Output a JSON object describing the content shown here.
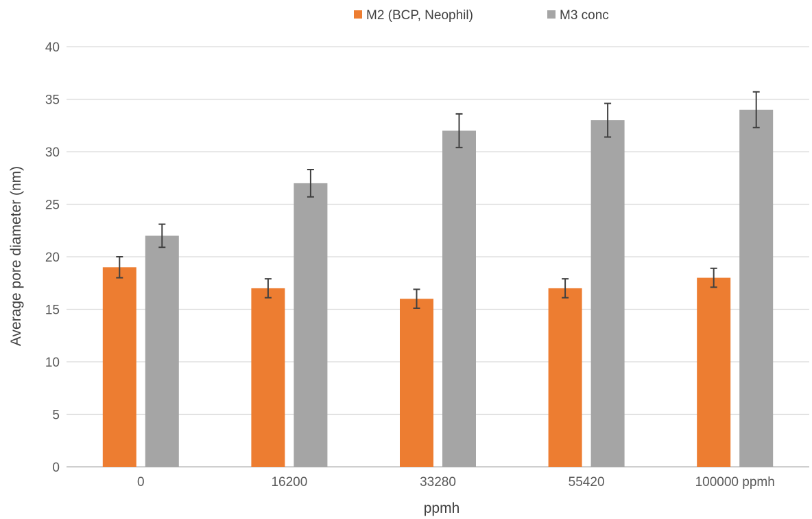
{
  "chart_data": {
    "type": "bar",
    "title": "",
    "xlabel": "ppmh",
    "ylabel": "Average pore diameter (nm)",
    "categories": [
      "0",
      "16200",
      "33280",
      "55420",
      "100000 ppmh"
    ],
    "ylim": [
      0,
      40
    ],
    "yticks": [
      0,
      5,
      10,
      15,
      20,
      25,
      30,
      35,
      40
    ],
    "grid": true,
    "legend_position": "top-center",
    "series": [
      {
        "name": "M2 (BCP, Neophil)",
        "color": "#ED7D31",
        "values": [
          19,
          17,
          16,
          17,
          18
        ],
        "errors": [
          1.0,
          0.9,
          0.9,
          0.9,
          0.9
        ]
      },
      {
        "name": "M3 conc",
        "color": "#A5A5A5",
        "values": [
          22,
          27,
          32,
          33,
          34
        ],
        "errors": [
          1.1,
          1.3,
          1.6,
          1.6,
          1.7
        ]
      }
    ]
  }
}
